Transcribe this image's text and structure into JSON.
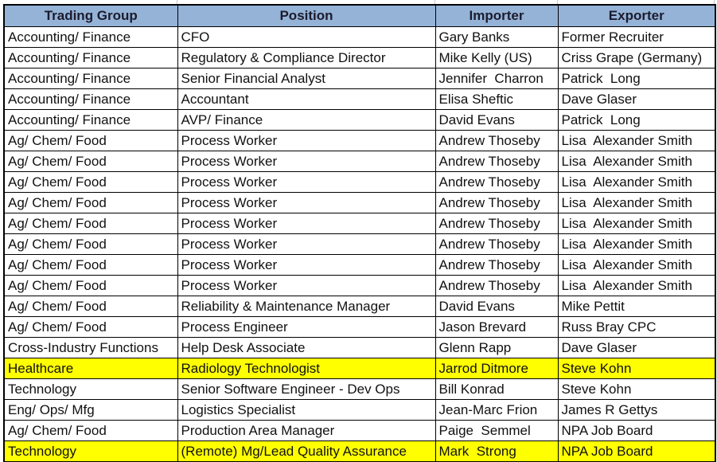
{
  "table": {
    "columns": [
      {
        "label": "Trading Group"
      },
      {
        "label": "Position"
      },
      {
        "label": "Importer"
      },
      {
        "label": "Exporter"
      }
    ],
    "rows": [
      {
        "group": "Accounting/ Finance",
        "position": "CFO",
        "importer": "Gary Banks",
        "exporter": "Former Recruiter",
        "highlight": false,
        "importer_bold": false
      },
      {
        "group": "Accounting/ Finance",
        "position": "Regulatory & Compliance Director",
        "importer": "Mike Kelly (US)",
        "exporter": "Criss Grape (Germany)",
        "highlight": false,
        "importer_bold": false
      },
      {
        "group": "Accounting/ Finance",
        "position": "Senior Financial Analyst",
        "importer": "Jennifer  Charron",
        "exporter": "Patrick  Long",
        "highlight": false,
        "importer_bold": false
      },
      {
        "group": "Accounting/ Finance",
        "position": "Accountant",
        "importer": "Elisa Sheftic",
        "exporter": "Dave Glaser",
        "highlight": false,
        "importer_bold": false
      },
      {
        "group": "Accounting/ Finance",
        "position": "AVP/ Finance",
        "importer": "David Evans",
        "exporter": "Patrick  Long",
        "highlight": false,
        "importer_bold": false
      },
      {
        "group": "Ag/ Chem/ Food",
        "position": "Process Worker",
        "importer": "Andrew Thoseby",
        "exporter": "Lisa  Alexander Smith",
        "highlight": false,
        "importer_bold": false
      },
      {
        "group": "Ag/ Chem/ Food",
        "position": "Process Worker",
        "importer": "Andrew Thoseby",
        "exporter": "Lisa  Alexander Smith",
        "highlight": false,
        "importer_bold": false
      },
      {
        "group": "Ag/ Chem/ Food",
        "position": "Process Worker",
        "importer": "Andrew Thoseby",
        "exporter": "Lisa  Alexander Smith",
        "highlight": false,
        "importer_bold": false
      },
      {
        "group": "Ag/ Chem/ Food",
        "position": "Process Worker",
        "importer": "Andrew Thoseby",
        "exporter": "Lisa  Alexander Smith",
        "highlight": false,
        "importer_bold": false
      },
      {
        "group": "Ag/ Chem/ Food",
        "position": "Process Worker",
        "importer": "Andrew Thoseby",
        "exporter": "Lisa  Alexander Smith",
        "highlight": false,
        "importer_bold": false
      },
      {
        "group": "Ag/ Chem/ Food",
        "position": "Process Worker",
        "importer": "Andrew Thoseby",
        "exporter": "Lisa  Alexander Smith",
        "highlight": false,
        "importer_bold": false
      },
      {
        "group": "Ag/ Chem/ Food",
        "position": "Process Worker",
        "importer": "Andrew Thoseby",
        "exporter": "Lisa  Alexander Smith",
        "highlight": false,
        "importer_bold": false
      },
      {
        "group": "Ag/ Chem/ Food",
        "position": "Process Worker",
        "importer": "Andrew Thoseby",
        "exporter": "Lisa  Alexander Smith",
        "highlight": false,
        "importer_bold": false
      },
      {
        "group": "Ag/ Chem/ Food",
        "position": "Reliability & Maintenance Manager",
        "importer": "David Evans",
        "exporter": "Mike Pettit",
        "highlight": false,
        "importer_bold": false
      },
      {
        "group": "Ag/ Chem/ Food",
        "position": "Process Engineer",
        "importer": "Jason Brevard",
        "exporter": "Russ Bray CPC",
        "highlight": false,
        "importer_bold": false
      },
      {
        "group": "Cross-Industry Functions",
        "position": "Help Desk Associate",
        "importer": "Glenn Rapp",
        "exporter": "Dave Glaser",
        "highlight": false,
        "importer_bold": false
      },
      {
        "group": "Healthcare",
        "position": "Radiology Technologist",
        "importer": "Jarrod Ditmore",
        "exporter": "Steve Kohn",
        "highlight": true,
        "importer_bold": true
      },
      {
        "group": "Technology",
        "position": "Senior Software Engineer - Dev Ops",
        "importer": "Bill Konrad",
        "exporter": "Steve Kohn",
        "highlight": false,
        "importer_bold": false
      },
      {
        "group": "Eng/ Ops/ Mfg",
        "position": "Logistics Specialist",
        "importer": "Jean-Marc Frion",
        "exporter": "James R Gettys",
        "highlight": false,
        "importer_bold": false
      },
      {
        "group": "Ag/ Chem/ Food",
        "position": "Production Area Manager",
        "importer": "Paige  Semmel",
        "exporter": "NPA Job Board",
        "highlight": false,
        "importer_bold": false
      },
      {
        "group": "Technology",
        "position": "(Remote) Mg/Lead Quality Assurance",
        "importer": "Mark  Strong",
        "exporter": "NPA Job Board",
        "highlight": true,
        "importer_bold": true
      }
    ]
  },
  "colors": {
    "header_bg": "#95B3D7",
    "header_text": "#1b1b2d",
    "text": "#111111",
    "highlight": "#FFFF00",
    "border": "#000000",
    "gridline": "#c6c6c6"
  }
}
